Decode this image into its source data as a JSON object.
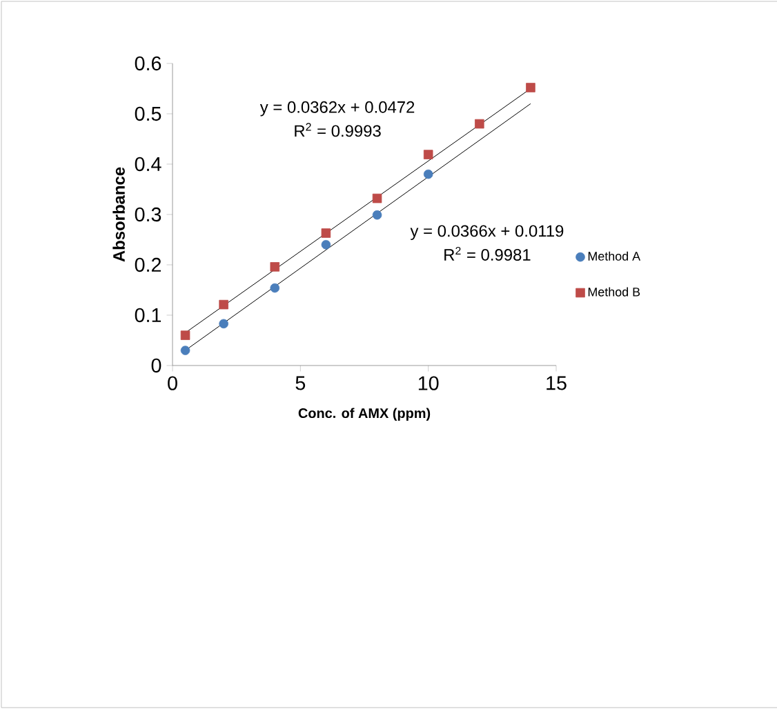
{
  "chart_data": {
    "type": "scatter",
    "xlabel": "Conc. of AMX (ppm)",
    "ylabel": "Absorbance",
    "xlim": [
      0,
      15
    ],
    "xticks": [
      0,
      5,
      10,
      15
    ],
    "ylim": [
      0,
      0.6
    ],
    "yticks": [
      0,
      0.1,
      0.2,
      0.3,
      0.4,
      0.5,
      0.6
    ],
    "grid": false,
    "legend": "right",
    "series": [
      {
        "name": "Method A",
        "color": "#4a7ebb",
        "marker": "circle",
        "x": [
          0.5,
          2,
          4,
          6,
          8,
          10
        ],
        "values": [
          0.03,
          0.083,
          0.154,
          0.24,
          0.299,
          0.38
        ]
      },
      {
        "name": "Method B",
        "color": "#be4b48",
        "marker": "square",
        "x": [
          0.5,
          2,
          4,
          6,
          8,
          10,
          12,
          14
        ],
        "values": [
          0.06,
          0.121,
          0.196,
          0.263,
          0.332,
          0.419,
          0.48,
          0.552
        ]
      },
      {
        "type": "line",
        "color": "#000000",
        "x": [
          0.5,
          14
        ],
        "values": [
          0.03,
          0.52
        ]
      },
      {
        "type": "line",
        "color": "#000000",
        "x": [
          0.5,
          14
        ],
        "values": [
          0.065,
          0.55
        ]
      }
    ],
    "annotations": [
      "y = 0.0362x + 0.0472",
      "R$^{2}$ = 0.9993",
      "y = 0.0366x + 0.0119",
      "R$^{2}$ = 0.9981"
    ]
  }
}
